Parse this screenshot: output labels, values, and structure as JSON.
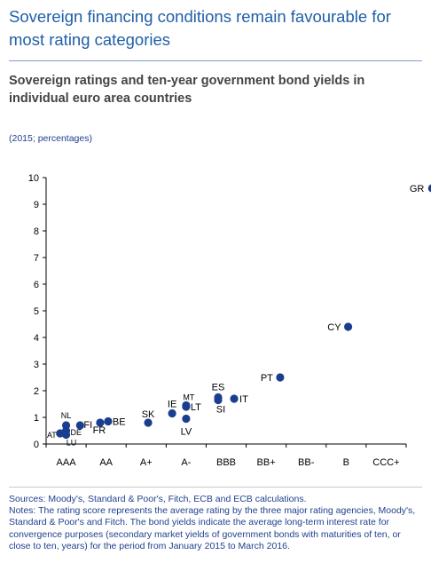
{
  "page": {
    "title": "Sovereign financing conditions remain favourable for most rating categories"
  },
  "chart_data": {
    "type": "scatter",
    "title": "Sovereign ratings and ten-year government bond yields in individual euro area countries",
    "subtitle": "(2015; percentages)",
    "xlabel": "",
    "ylabel": "",
    "categories": [
      "AAA",
      "AA",
      "A+",
      "A-",
      "BBB",
      "BB+",
      "BB-",
      "B",
      "CCC+"
    ],
    "ylim": [
      0,
      10
    ],
    "yticks": [
      "0",
      "1",
      "2",
      "3",
      "4",
      "5",
      "6",
      "7",
      "8",
      "9",
      "10"
    ],
    "grid": false,
    "color": "#1a3e8f",
    "points": [
      {
        "label": "NL",
        "x": 1.0,
        "y": 0.7
      },
      {
        "label": "FI",
        "x": 1.35,
        "y": 0.7
      },
      {
        "label": "DE",
        "x": 1.0,
        "y": 0.5
      },
      {
        "label": "AT",
        "x": 0.85,
        "y": 0.4
      },
      {
        "label": "LU",
        "x": 1.0,
        "y": 0.35
      },
      {
        "label": "FR",
        "x": 1.85,
        "y": 0.8
      },
      {
        "label": "BE",
        "x": 2.05,
        "y": 0.85
      },
      {
        "label": "SK",
        "x": 3.05,
        "y": 0.8
      },
      {
        "label": "IE",
        "x": 3.65,
        "y": 1.15
      },
      {
        "label": "MT",
        "x": 4.0,
        "y": 1.45
      },
      {
        "label": "LT",
        "x": 4.0,
        "y": 1.4
      },
      {
        "label": "LV",
        "x": 4.0,
        "y": 0.95
      },
      {
        "label": "ES",
        "x": 4.8,
        "y": 1.75
      },
      {
        "label": "SI",
        "x": 4.8,
        "y": 1.65
      },
      {
        "label": "IT",
        "x": 5.2,
        "y": 1.7
      },
      {
        "label": "PT",
        "x": 6.35,
        "y": 2.5
      },
      {
        "label": "CY",
        "x": 8.05,
        "y": 4.4
      },
      {
        "label": "GR",
        "x": 10.15,
        "y": 9.6
      }
    ]
  },
  "footnote": {
    "sources": "Sources: Moody's, Standard & Poor's, Fitch, ECB and ECB calculations.",
    "notes": "Notes: The rating score represents the average rating by the three major rating agencies, Moody's, Standard & Poor's and Fitch. The bond yields indicate the average long-term interest rate for convergence purposes (secondary market yields of government bonds with maturities of ten, or close to ten, years) for the period from January 2015 to March 2016."
  }
}
